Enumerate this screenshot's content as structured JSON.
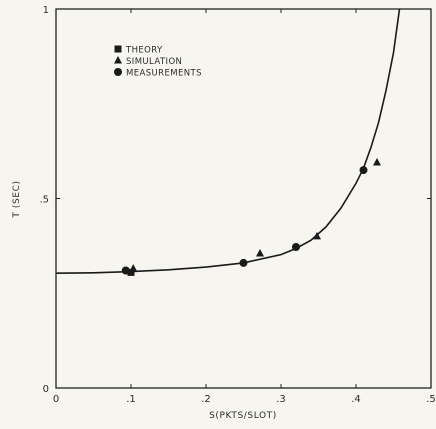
{
  "chart_data": {
    "type": "scatter",
    "xlabel": "S(PKTS/SLOT)",
    "ylabel": "T (SEC)",
    "xlim": [
      0,
      0.5
    ],
    "ylim": [
      0,
      1
    ],
    "x_ticks": [
      {
        "value": 0,
        "label": "0"
      },
      {
        "value": 0.1,
        "label": ".1"
      },
      {
        "value": 0.2,
        "label": ".2"
      },
      {
        "value": 0.3,
        "label": ".3"
      },
      {
        "value": 0.4,
        "label": ".4"
      },
      {
        "value": 0.5,
        "label": ".5"
      }
    ],
    "y_ticks": [
      {
        "value": 0,
        "label": "0"
      },
      {
        "value": 0.5,
        "label": ".5"
      },
      {
        "value": 1,
        "label": "1"
      }
    ],
    "grid": false,
    "legend_position": "top-left",
    "series": [
      {
        "name": "THEORY",
        "marker": "square",
        "points": [
          {
            "x": 0.1,
            "y": 0.305
          }
        ],
        "curve": [
          {
            "x": 0.0,
            "y": 0.303
          },
          {
            "x": 0.05,
            "y": 0.304
          },
          {
            "x": 0.1,
            "y": 0.307
          },
          {
            "x": 0.15,
            "y": 0.312
          },
          {
            "x": 0.2,
            "y": 0.319
          },
          {
            "x": 0.25,
            "y": 0.33
          },
          {
            "x": 0.3,
            "y": 0.352
          },
          {
            "x": 0.32,
            "y": 0.368
          },
          {
            "x": 0.34,
            "y": 0.39
          },
          {
            "x": 0.36,
            "y": 0.425
          },
          {
            "x": 0.38,
            "y": 0.475
          },
          {
            "x": 0.4,
            "y": 0.54
          },
          {
            "x": 0.41,
            "y": 0.58
          },
          {
            "x": 0.42,
            "y": 0.635
          },
          {
            "x": 0.43,
            "y": 0.7
          },
          {
            "x": 0.44,
            "y": 0.785
          },
          {
            "x": 0.45,
            "y": 0.885
          },
          {
            "x": 0.458,
            "y": 1.0
          }
        ]
      },
      {
        "name": "SIMULATION",
        "marker": "triangle",
        "points": [
          {
            "x": 0.103,
            "y": 0.315
          },
          {
            "x": 0.272,
            "y": 0.355
          },
          {
            "x": 0.348,
            "y": 0.4
          },
          {
            "x": 0.428,
            "y": 0.595
          }
        ]
      },
      {
        "name": "MEASUREMENTS",
        "marker": "circle",
        "points": [
          {
            "x": 0.093,
            "y": 0.31
          },
          {
            "x": 0.25,
            "y": 0.33
          },
          {
            "x": 0.32,
            "y": 0.372
          },
          {
            "x": 0.41,
            "y": 0.575
          }
        ]
      }
    ]
  }
}
